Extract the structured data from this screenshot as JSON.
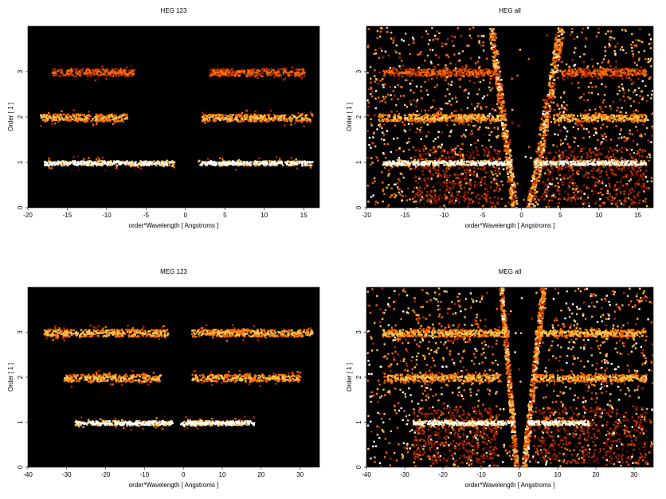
{
  "chart_data": [
    {
      "type": "heatmap",
      "title": "HEG 123",
      "xlabel": "order*Wavelength [ Angstroms ]",
      "ylabel": "Order [ 1 ]",
      "xlim": [
        -20,
        17
      ],
      "ylim": [
        0,
        4
      ],
      "xticks": [
        -20,
        -15,
        -10,
        -5,
        0,
        5,
        10,
        15
      ],
      "yticks": [
        0,
        1,
        2,
        3
      ],
      "grid": false,
      "colormap": [
        "#000000",
        "#5a0a00",
        "#b02a00",
        "#ff6a00",
        "#ffc24a",
        "#ffffff"
      ],
      "bands": [
        {
          "order": 1,
          "ranges": [
            [
              -18,
              -1.5
            ],
            [
              1.5,
              16
            ]
          ],
          "intensity": "high"
        },
        {
          "order": 2,
          "ranges": [
            [
              -18.5,
              -7.5
            ],
            [
              2,
              16
            ]
          ],
          "intensity": "medium"
        },
        {
          "order": 3,
          "ranges": [
            [
              -17,
              -6.5
            ],
            [
              3,
              15
            ]
          ],
          "intensity": "low"
        }
      ],
      "background": "none"
    },
    {
      "type": "heatmap",
      "title": "HEG all",
      "xlabel": "order*Wavelength [ Angstroms ]",
      "ylabel": "Order [ 1 ]",
      "xlim": [
        -20,
        17
      ],
      "ylim": [
        0,
        4
      ],
      "xticks": [
        -20,
        -15,
        -10,
        -5,
        0,
        5,
        10,
        15
      ],
      "yticks": [
        0,
        1,
        2,
        3
      ],
      "grid": false,
      "colormap": [
        "#000000",
        "#5a0a00",
        "#b02a00",
        "#ff6a00",
        "#ffc24a",
        "#ffffff"
      ],
      "bands": [
        {
          "order": 1,
          "ranges": [
            [
              -18,
              -1.5
            ],
            [
              1.5,
              16
            ]
          ],
          "intensity": "high"
        },
        {
          "order": 2,
          "ranges": [
            [
              -18.5,
              -3
            ],
            [
              4,
              16
            ]
          ],
          "intensity": "medium"
        },
        {
          "order": 3,
          "ranges": [
            [
              -18,
              -3
            ],
            [
              5,
              16
            ]
          ],
          "intensity": "low"
        }
      ],
      "background": "scattered",
      "diagonal_streaks": [
        {
          "x0": -1,
          "x1": -4,
          "direction": "left"
        },
        {
          "x0": 1,
          "x1": 5,
          "direction": "right"
        }
      ]
    },
    {
      "type": "heatmap",
      "title": "MEG 123",
      "xlabel": "order*Wavelength [ Angstroms ]",
      "ylabel": "Order [ 1 ]",
      "xlim": [
        -40,
        35
      ],
      "ylim": [
        0,
        4
      ],
      "xticks": [
        -40,
        -30,
        -20,
        -10,
        0,
        10,
        20,
        30
      ],
      "yticks": [
        0,
        1,
        2,
        3
      ],
      "grid": false,
      "colormap": [
        "#000000",
        "#5a0a00",
        "#b02a00",
        "#ff6a00",
        "#ffc24a",
        "#ffffff"
      ],
      "bands": [
        {
          "order": 1,
          "ranges": [
            [
              -28,
              -3
            ],
            [
              -1,
              18
            ]
          ],
          "intensity": "high"
        },
        {
          "order": 2,
          "ranges": [
            [
              -31,
              -6
            ],
            [
              2,
              30
            ]
          ],
          "intensity": "medium"
        },
        {
          "order": 3,
          "ranges": [
            [
              -36,
              -4
            ],
            [
              2,
              33
            ]
          ],
          "intensity": "medium"
        }
      ],
      "background": "none"
    },
    {
      "type": "heatmap",
      "title": "MEG all",
      "xlabel": "order*Wavelength [ Angstroms ]",
      "ylabel": "Order [ 1 ]",
      "xlim": [
        -40,
        35
      ],
      "ylim": [
        0,
        4
      ],
      "xticks": [
        -40,
        -30,
        -20,
        -10,
        0,
        10,
        20,
        30
      ],
      "yticks": [
        0,
        1,
        2,
        3
      ],
      "grid": false,
      "colormap": [
        "#000000",
        "#5a0a00",
        "#b02a00",
        "#ff6a00",
        "#ffc24a",
        "#ffffff"
      ],
      "bands": [
        {
          "order": 1,
          "ranges": [
            [
              -28,
              -2
            ],
            [
              2,
              18
            ]
          ],
          "intensity": "high"
        },
        {
          "order": 2,
          "ranges": [
            [
              -35,
              -5
            ],
            [
              3,
              33
            ]
          ],
          "intensity": "medium"
        },
        {
          "order": 3,
          "ranges": [
            [
              -36,
              -3
            ],
            [
              4,
              33
            ]
          ],
          "intensity": "medium"
        }
      ],
      "background": "scattered",
      "diagonal_streaks": [
        {
          "x0": -1,
          "x1": -5,
          "direction": "left"
        },
        {
          "x0": 1,
          "x1": 6,
          "direction": "right"
        }
      ]
    }
  ]
}
